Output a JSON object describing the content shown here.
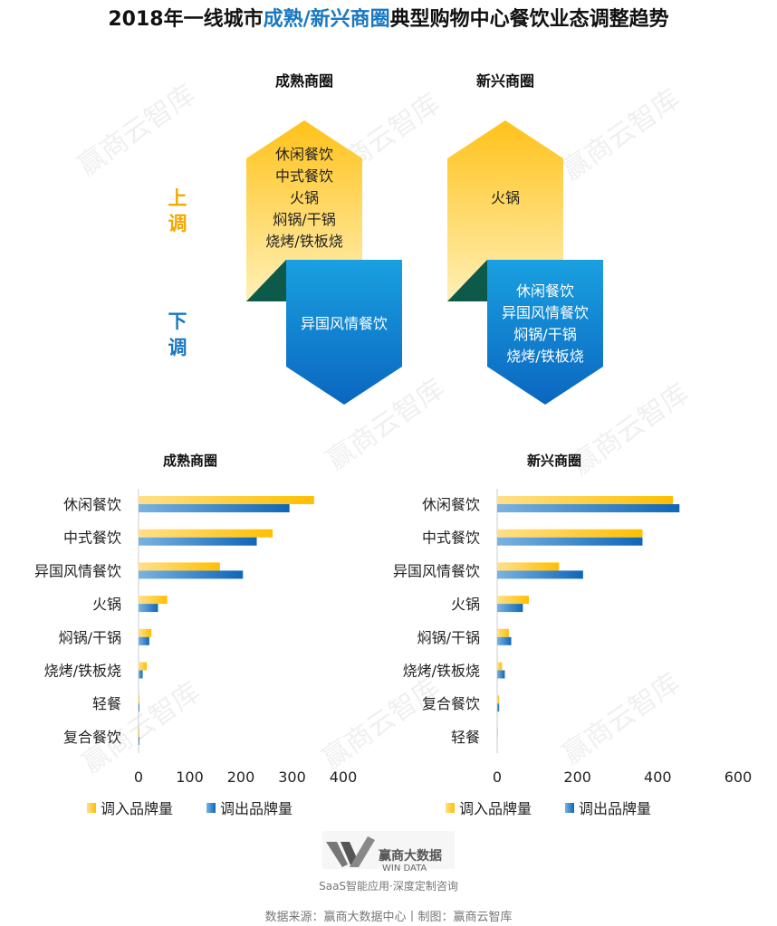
{
  "title": {
    "prefix": "2018年一线城市",
    "highlight": "成熟/新兴商圈",
    "suffix": "典型购物中心餐饮业态调整趋势",
    "highlight_color": "#1a78c2"
  },
  "watermark": "赢商云智库",
  "diagram": {
    "up_label": [
      "上",
      "调"
    ],
    "down_label": [
      "下",
      "调"
    ],
    "up_color": "#f2a900",
    "down_color": "#1a78c2",
    "columns": [
      {
        "header": "成熟商圈",
        "up": [
          "休闲餐饮",
          "中式餐饮",
          "火锅",
          "焖锅/干锅",
          "烧烤/铁板烧"
        ],
        "down": [
          "异国风情餐饮"
        ]
      },
      {
        "header": "新兴商圈",
        "up": [
          "火锅"
        ],
        "down": [
          "休闲餐饮",
          "异国风情餐饮",
          "焖锅/干锅",
          "烧烤/铁板烧"
        ]
      }
    ]
  },
  "chart_data": [
    {
      "type": "bar",
      "orientation": "horizontal",
      "title": "成熟商圈",
      "categories": [
        "休闲餐饮",
        "中式餐饮",
        "异国风情餐饮",
        "火锅",
        "焖锅/干锅",
        "烧烤/铁板烧",
        "轻餐",
        "复合餐饮"
      ],
      "series": [
        {
          "name": "调入品牌量",
          "color": "#ffc000",
          "values": [
            343,
            262,
            159,
            56,
            25,
            16,
            2,
            2
          ]
        },
        {
          "name": "调出品牌量",
          "color": "#1a6fc0",
          "values": [
            295,
            231,
            204,
            38,
            21,
            8,
            1,
            1
          ]
        }
      ],
      "xlim": [
        0,
        400
      ],
      "xticks": [
        "0",
        "100",
        "200",
        "300",
        "400"
      ],
      "legend": "bottom"
    },
    {
      "type": "bar",
      "orientation": "horizontal",
      "title": "新兴商圈",
      "categories": [
        "休闲餐饮",
        "中式餐饮",
        "异国风情餐饮",
        "火锅",
        "焖锅/干锅",
        "烧烤/铁板烧",
        "复合餐饮",
        "轻餐"
      ],
      "series": [
        {
          "name": "调入品牌量",
          "color": "#ffc000",
          "values": [
            438,
            362,
            154,
            79,
            29,
            12,
            5,
            1
          ]
        },
        {
          "name": "调出品牌量",
          "color": "#1a6fc0",
          "values": [
            454,
            362,
            214,
            64,
            35,
            19,
            5,
            0
          ]
        }
      ],
      "xlim": [
        0,
        600
      ],
      "xticks": [
        "0",
        "200",
        "400",
        "600"
      ],
      "legend": "bottom"
    }
  ],
  "logo": {
    "name": "赢商大数据",
    "sub": "WIN DATA",
    "tagline": "SaaS智能应用·深度定制咨询"
  },
  "footer": "数据来源：赢商大数据中心丨制图：赢商云智库"
}
